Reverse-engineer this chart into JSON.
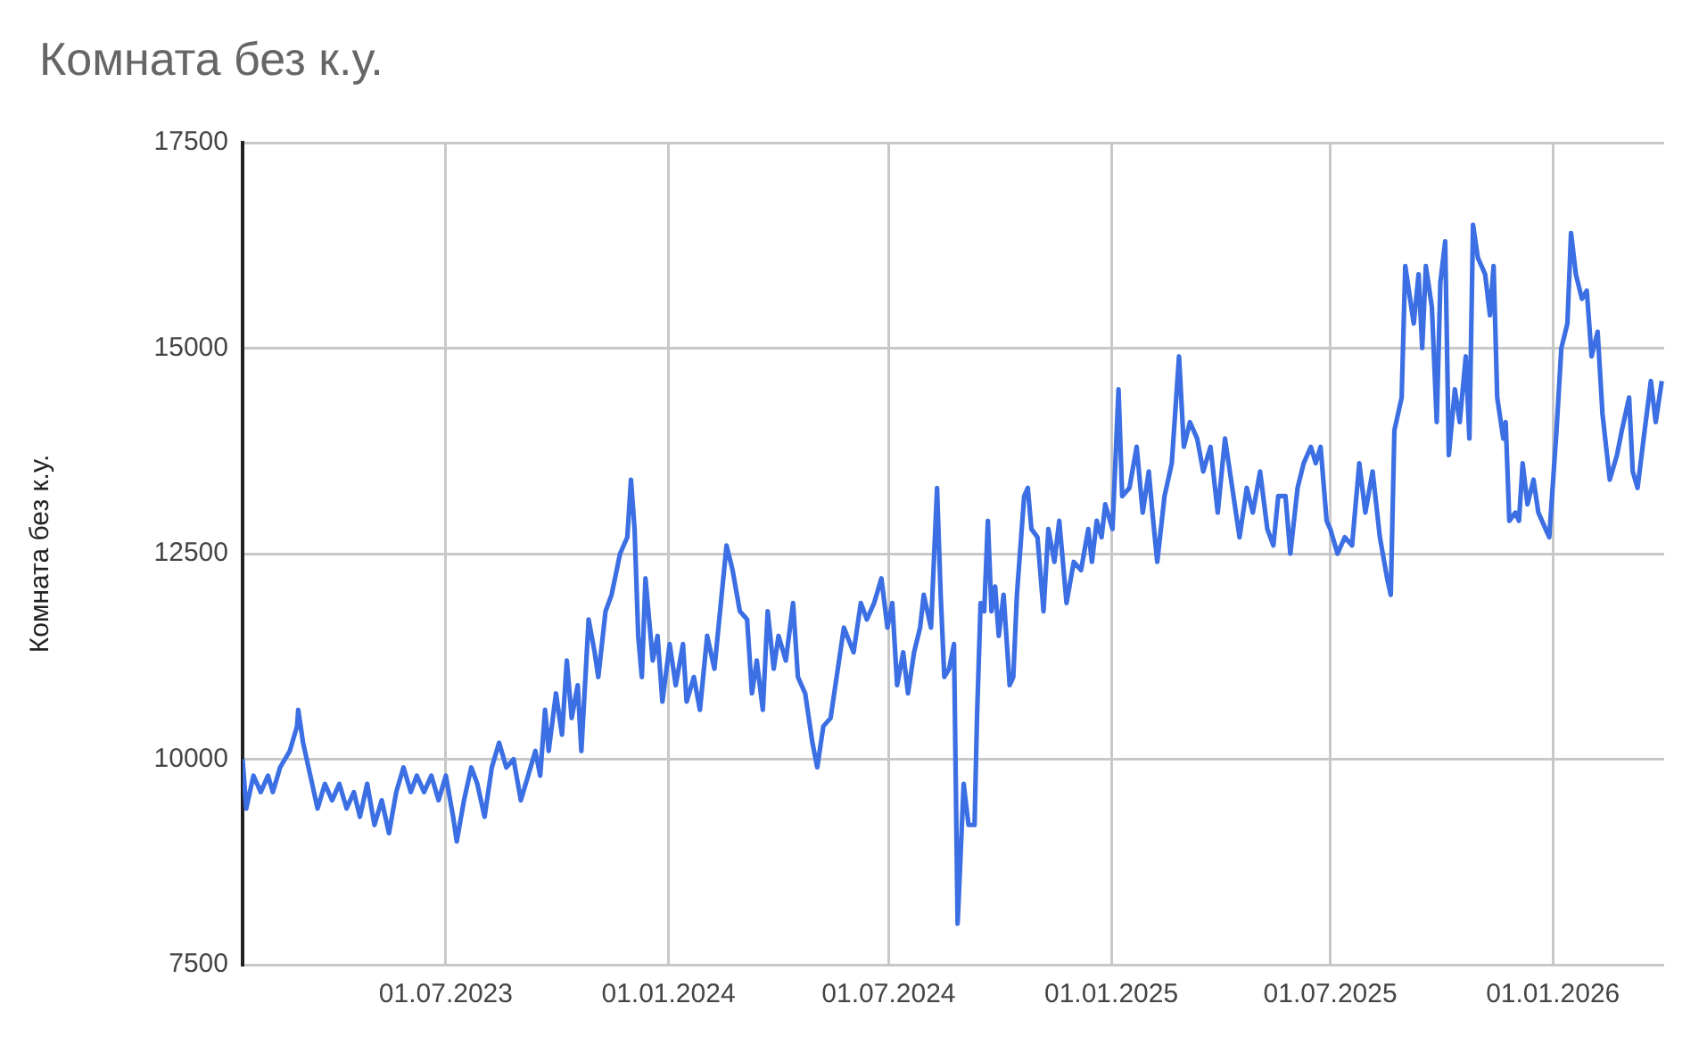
{
  "chart_data": {
    "type": "line",
    "title": "Комната без к.у.",
    "ylabel": "Комната без к.у.",
    "x": [
      "2023-01-14",
      "2023-01-17",
      "2023-01-23",
      "2023-01-29",
      "2023-02-04",
      "2023-02-08",
      "2023-02-14",
      "2023-02-22",
      "2023-02-28",
      "2023-03-01",
      "2023-03-05",
      "2023-03-11",
      "2023-03-17",
      "2023-03-23",
      "2023-03-29",
      "2023-04-04",
      "2023-04-10",
      "2023-04-16",
      "2023-04-21",
      "2023-04-27",
      "2023-05-03",
      "2023-05-09",
      "2023-05-15",
      "2023-05-21",
      "2023-05-27",
      "2023-06-02",
      "2023-06-07",
      "2023-06-13",
      "2023-06-19",
      "2023-06-25",
      "2023-07-01",
      "2023-07-07",
      "2023-07-10",
      "2023-07-16",
      "2023-07-22",
      "2023-07-27",
      "2023-08-02",
      "2023-08-08",
      "2023-08-14",
      "2023-08-20",
      "2023-08-26",
      "2023-09-01",
      "2023-09-07",
      "2023-09-13",
      "2023-09-17",
      "2023-09-21",
      "2023-09-24",
      "2023-09-30",
      "2023-10-05",
      "2023-10-09",
      "2023-10-13",
      "2023-10-18",
      "2023-10-21",
      "2023-10-27",
      "2023-11-01",
      "2023-11-04",
      "2023-11-10",
      "2023-11-15",
      "2023-11-22",
      "2023-11-28",
      "2023-12-01",
      "2023-12-04",
      "2023-12-07",
      "2023-12-10",
      "2023-12-13",
      "2023-12-19",
      "2023-12-23",
      "2023-12-27",
      "2024-01-02",
      "2024-01-07",
      "2024-01-13",
      "2024-01-16",
      "2024-01-22",
      "2024-01-27",
      "2024-02-02",
      "2024-02-08",
      "2024-02-14",
      "2024-02-18",
      "2024-02-23",
      "2024-02-29",
      "2024-03-06",
      "2024-03-10",
      "2024-03-14",
      "2024-03-19",
      "2024-03-23",
      "2024-03-28",
      "2024-04-01",
      "2024-04-07",
      "2024-04-13",
      "2024-04-17",
      "2024-04-23",
      "2024-04-29",
      "2024-05-03",
      "2024-05-08",
      "2024-05-14",
      "2024-05-21",
      "2024-05-25",
      "2024-06-02",
      "2024-06-08",
      "2024-06-13",
      "2024-06-19",
      "2024-06-25",
      "2024-06-30",
      "2024-07-04",
      "2024-07-08",
      "2024-07-13",
      "2024-07-17",
      "2024-07-22",
      "2024-07-27",
      "2024-07-30",
      "2024-08-05",
      "2024-08-10",
      "2024-08-13",
      "2024-08-16",
      "2024-08-20",
      "2024-08-24",
      "2024-08-27",
      "2024-09-01",
      "2024-09-05",
      "2024-09-10",
      "2024-09-12",
      "2024-09-15",
      "2024-09-18",
      "2024-09-21",
      "2024-09-24",
      "2024-09-27",
      "2024-09-30",
      "2024-10-04",
      "2024-10-09",
      "2024-10-12",
      "2024-10-15",
      "2024-10-21",
      "2024-10-24",
      "2024-10-27",
      "2024-11-01",
      "2024-11-06",
      "2024-11-10",
      "2024-11-15",
      "2024-11-19",
      "2024-11-25",
      "2024-12-01",
      "2024-12-07",
      "2024-12-13",
      "2024-12-16",
      "2024-12-20",
      "2024-12-24",
      "2024-12-27",
      "2025-01-02",
      "2025-01-07",
      "2025-01-10",
      "2025-01-16",
      "2025-01-22",
      "2025-01-27",
      "2025-02-01",
      "2025-02-04",
      "2025-02-08",
      "2025-02-14",
      "2025-02-20",
      "2025-02-26",
      "2025-03-02",
      "2025-03-07",
      "2025-03-13",
      "2025-03-18",
      "2025-03-24",
      "2025-03-30",
      "2025-04-05",
      "2025-04-11",
      "2025-04-17",
      "2025-04-23",
      "2025-04-28",
      "2025-05-04",
      "2025-05-10",
      "2025-05-15",
      "2025-05-19",
      "2025-05-25",
      "2025-05-29",
      "2025-06-04",
      "2025-06-09",
      "2025-06-15",
      "2025-06-19",
      "2025-06-23",
      "2025-06-28",
      "2025-07-01",
      "2025-07-07",
      "2025-07-13",
      "2025-07-19",
      "2025-07-25",
      "2025-07-30",
      "2025-08-05",
      "2025-08-11",
      "2025-08-17",
      "2025-08-20",
      "2025-08-23",
      "2025-08-29",
      "2025-09-01",
      "2025-09-08",
      "2025-09-12",
      "2025-09-15",
      "2025-09-18",
      "2025-09-23",
      "2025-09-27",
      "2025-09-30",
      "2025-10-04",
      "2025-10-07",
      "2025-10-12",
      "2025-10-16",
      "2025-10-21",
      "2025-10-24",
      "2025-10-27",
      "2025-10-31",
      "2025-11-06",
      "2025-11-10",
      "2025-11-13",
      "2025-11-16",
      "2025-11-21",
      "2025-11-23",
      "2025-11-26",
      "2025-12-01",
      "2025-12-04",
      "2025-12-07",
      "2025-12-11",
      "2025-12-16",
      "2025-12-20",
      "2025-12-26",
      "2025-12-29",
      "2026-01-04",
      "2026-01-08",
      "2026-01-13",
      "2026-01-16",
      "2026-01-20",
      "2026-01-25",
      "2026-01-29",
      "2026-02-02",
      "2026-02-07",
      "2026-02-11",
      "2026-02-17",
      "2026-02-23",
      "2026-02-27",
      "2026-03-05",
      "2026-03-08",
      "2026-03-12",
      "2026-03-17",
      "2026-03-23",
      "2026-03-27",
      "2026-04-01"
    ],
    "series": [
      {
        "color": "#3b6fe3",
        "values": [
          10000,
          9400,
          9800,
          9600,
          9800,
          9600,
          9900,
          10100,
          10400,
          10600,
          10200,
          9800,
          9400,
          9700,
          9500,
          9700,
          9400,
          9600,
          9300,
          9700,
          9200,
          9500,
          9100,
          9600,
          9900,
          9600,
          9800,
          9600,
          9800,
          9500,
          9800,
          9300,
          9000,
          9500,
          9900,
          9700,
          9300,
          9900,
          10200,
          9900,
          10000,
          9500,
          9800,
          10100,
          9800,
          10600,
          10100,
          10800,
          10300,
          11200,
          10500,
          10900,
          10100,
          11700,
          11300,
          11000,
          11800,
          12000,
          12500,
          12700,
          13400,
          12800,
          11500,
          11000,
          12200,
          11200,
          11500,
          10700,
          11400,
          10900,
          11400,
          10700,
          11000,
          10600,
          11500,
          11100,
          12000,
          12600,
          12300,
          11800,
          11700,
          10800,
          11200,
          10600,
          11800,
          11100,
          11500,
          11200,
          11900,
          11000,
          10800,
          10200,
          9900,
          10400,
          10500,
          11200,
          11600,
          11300,
          11900,
          11700,
          11900,
          12200,
          11600,
          11900,
          10900,
          11300,
          10800,
          11300,
          11600,
          12000,
          11600,
          13300,
          12000,
          11000,
          11100,
          11400,
          8000,
          9700,
          9200,
          9200,
          10500,
          11900,
          11800,
          12900,
          11800,
          12100,
          11500,
          12000,
          10900,
          11000,
          12000,
          13200,
          13300,
          12800,
          12700,
          11800,
          12800,
          12400,
          12900,
          11900,
          12400,
          12300,
          12800,
          12400,
          12900,
          12700,
          13100,
          12800,
          14500,
          13200,
          13300,
          13800,
          13000,
          13500,
          13000,
          12400,
          13200,
          13600,
          14900,
          13800,
          14100,
          13900,
          13500,
          13800,
          13000,
          13900,
          13300,
          12700,
          13300,
          13000,
          13500,
          12800,
          12600,
          13200,
          13200,
          12500,
          13300,
          13600,
          13800,
          13600,
          13800,
          12900,
          12800,
          12500,
          12700,
          12600,
          13600,
          13000,
          13500,
          12700,
          12200,
          12000,
          14000,
          14400,
          16000,
          15300,
          15900,
          15000,
          16000,
          15500,
          14100,
          15800,
          16300,
          13700,
          14500,
          14100,
          14900,
          13900,
          16500,
          16100,
          15900,
          15400,
          16000,
          14400,
          13900,
          14100,
          12900,
          13000,
          12900,
          13600,
          13100,
          13400,
          13000,
          12800,
          12700,
          14000,
          15000,
          15300,
          16400,
          15900,
          15600,
          15700,
          14900,
          15200,
          14200,
          13400,
          13700,
          14000,
          14400,
          13500,
          13300,
          13900,
          14600,
          14100,
          14600
        ]
      }
    ],
    "xlim": [
      "2023-01-14",
      "2026-04-03"
    ],
    "xticks": [
      {
        "value": "2023-07-01",
        "label": "01.07.2023"
      },
      {
        "value": "2024-01-01",
        "label": "01.01.2024"
      },
      {
        "value": "2024-07-01",
        "label": "01.07.2024"
      },
      {
        "value": "2025-01-01",
        "label": "01.01.2025"
      },
      {
        "value": "2025-07-01",
        "label": "01.07.2025"
      },
      {
        "value": "2026-01-01",
        "label": "01.01.2026"
      }
    ],
    "ylim": [
      7500,
      17500
    ],
    "yticks": [
      7500,
      10000,
      12500,
      15000,
      17500
    ],
    "grid": true,
    "legend": false,
    "marker": "none",
    "line_style": "solid"
  }
}
